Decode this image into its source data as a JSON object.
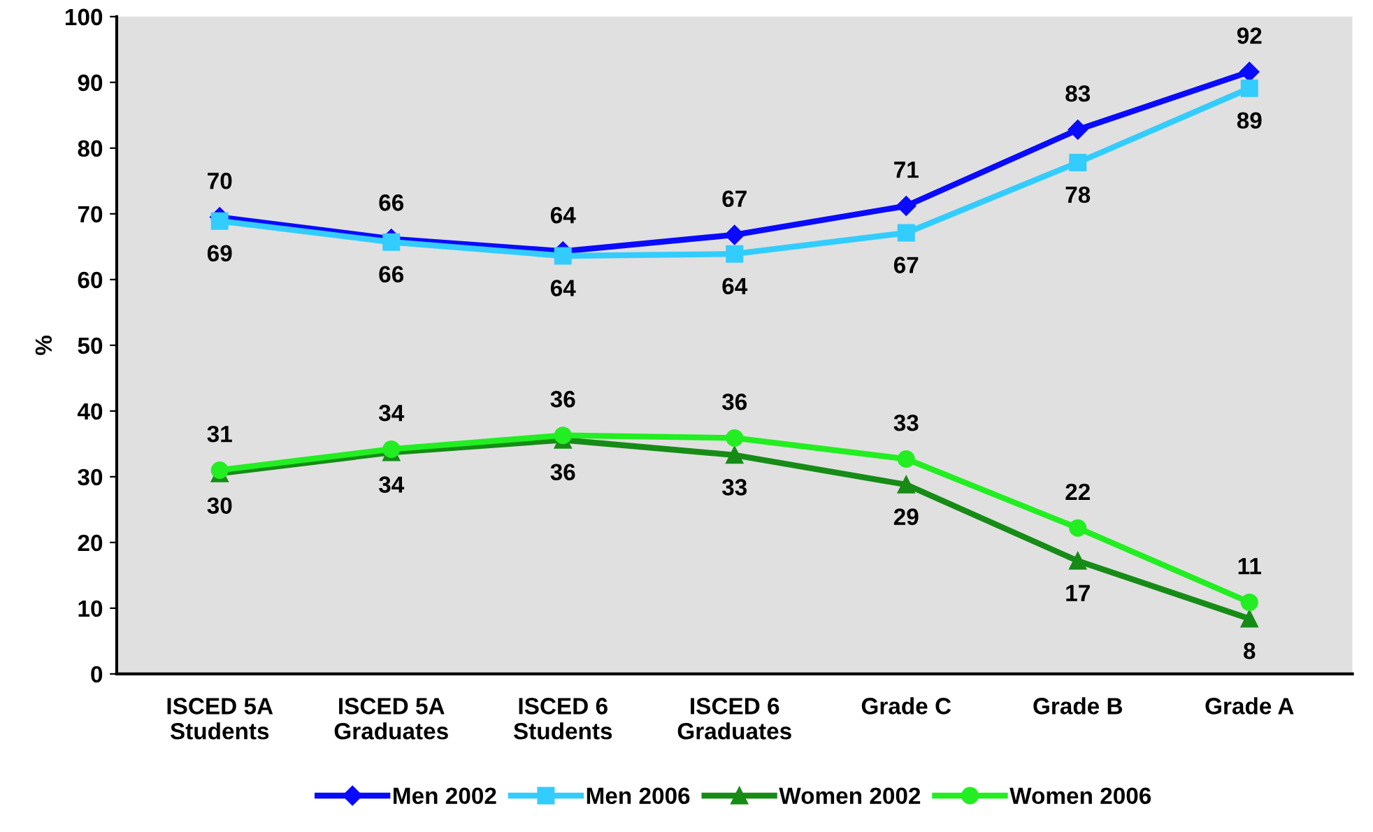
{
  "chart_data": {
    "type": "line",
    "ylabel": "%",
    "categories": [
      "ISCED 5A\nStudents",
      "ISCED 5A\nGraduates",
      "ISCED 6\nStudents",
      "ISCED 6\nGraduates",
      "Grade C",
      "Grade B",
      "Grade A"
    ],
    "series": [
      {
        "name": "Men 2002",
        "color": "#0a0aff",
        "marker": "diamond",
        "values": [
          69.5,
          66.2,
          64.3,
          66.8,
          71.2,
          82.8,
          91.6
        ],
        "value_labels": [
          "70",
          "66",
          "64",
          "67",
          "71",
          "83",
          "92"
        ]
      },
      {
        "name": "Men 2006",
        "color": "#33ccff",
        "marker": "square",
        "values": [
          68.9,
          65.7,
          63.6,
          63.9,
          67.1,
          77.8,
          89.1
        ],
        "value_labels": [
          "69",
          "66",
          "64",
          "64",
          "67",
          "78",
          "89"
        ]
      },
      {
        "name": "Women 2002",
        "color": "#168c16",
        "marker": "triangle",
        "values": [
          30.5,
          33.7,
          35.6,
          33.3,
          28.8,
          17.2,
          8.4
        ],
        "value_labels": [
          "30",
          "34",
          "36",
          "33",
          "29",
          "17",
          "8"
        ]
      },
      {
        "name": "Women 2006",
        "color": "#22ee22",
        "marker": "circle",
        "values": [
          31.0,
          34.2,
          36.3,
          35.9,
          32.7,
          22.2,
          10.9
        ],
        "value_labels": [
          "31",
          "34",
          "36",
          "36",
          "33",
          "22",
          "11"
        ]
      }
    ],
    "ylim": [
      0,
      100
    ],
    "yticks": [
      0,
      10,
      20,
      30,
      40,
      50,
      60,
      70,
      80,
      90,
      100
    ],
    "grid": false,
    "legend": "bottom",
    "line_style": "solid"
  }
}
